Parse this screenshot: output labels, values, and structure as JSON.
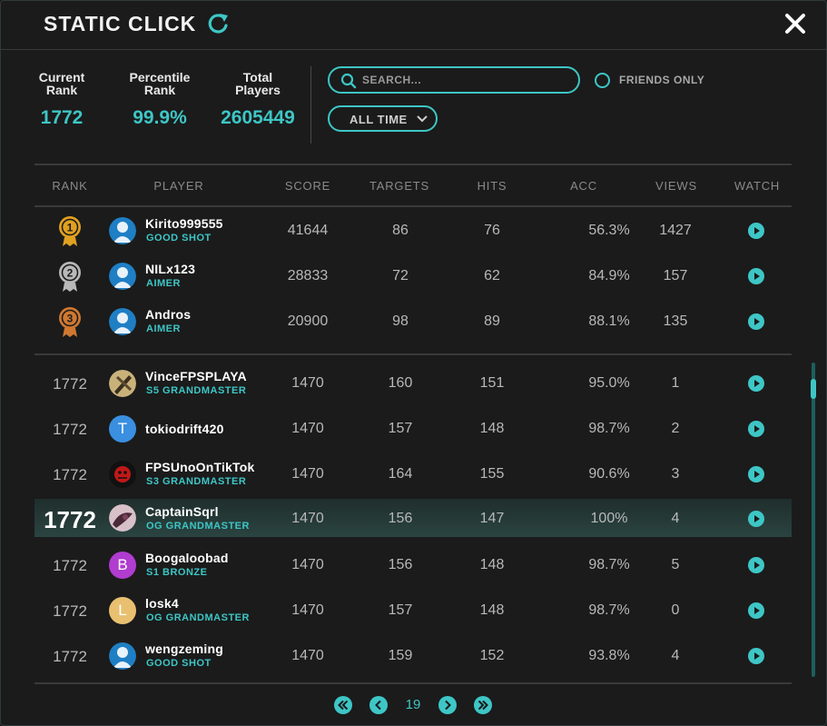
{
  "header": {
    "title": "STATIC CLICK"
  },
  "stats": [
    {
      "label_line1": "Current",
      "label_line2": "Rank",
      "value": "1772"
    },
    {
      "label_line1": "Percentile",
      "label_line2": "Rank",
      "value": "99.9%"
    },
    {
      "label_line1": "Total",
      "label_line2": "Players",
      "value": "2605449"
    }
  ],
  "search": {
    "placeholder": "SEARCH..."
  },
  "filters": {
    "friends_only_label": "FRIENDS ONLY",
    "timeframe_label": "ALL TIME"
  },
  "columns": [
    "RANK",
    "PLAYER",
    "SCORE",
    "TARGETS",
    "HITS",
    "ACC",
    "VIEWS",
    "WATCH"
  ],
  "top_rows": [
    {
      "medal": "1",
      "medal_color": "#e0a020",
      "name": "Kirito999555",
      "title": "GOOD SHOT",
      "score": "41644",
      "targets": "86",
      "hits": "76",
      "acc": "56.3%",
      "views": "1427"
    },
    {
      "medal": "2",
      "medal_color": "#b8b8b8",
      "name": "NILx123",
      "title": "AIMER",
      "score": "28833",
      "targets": "72",
      "hits": "62",
      "acc": "84.9%",
      "views": "157"
    },
    {
      "medal": "3",
      "medal_color": "#d07830",
      "name": "Andros",
      "title": "AIMER",
      "score": "20900",
      "targets": "98",
      "hits": "89",
      "acc": "88.1%",
      "views": "135"
    }
  ],
  "rows": [
    {
      "rank": "1772",
      "name": "VinceFPSPLAYA",
      "title": "S5 GRANDMASTER",
      "score": "1470",
      "targets": "160",
      "hits": "151",
      "acc": "95.0%",
      "views": "1"
    },
    {
      "rank": "1772",
      "name": "tokiodrift420",
      "title": "",
      "avatar_letter": "T",
      "score": "1470",
      "targets": "157",
      "hits": "148",
      "acc": "98.7%",
      "views": "2"
    },
    {
      "rank": "1772",
      "name": "FPSUnoOnTikTok",
      "title": "S3 GRANDMASTER",
      "score": "1470",
      "targets": "164",
      "hits": "155",
      "acc": "90.6%",
      "views": "3"
    },
    {
      "rank": "1772",
      "name": "CaptainSqrl",
      "title": "OG GRANDMASTER",
      "score": "1470",
      "targets": "156",
      "hits": "147",
      "acc": "100%",
      "views": "4"
    },
    {
      "rank": "1772",
      "name": "Boogaloobad",
      "title": "S1 BRONZE",
      "avatar_letter": "B",
      "score": "1470",
      "targets": "156",
      "hits": "148",
      "acc": "98.7%",
      "views": "5"
    },
    {
      "rank": "1772",
      "name": "losk4",
      "title": "OG GRANDMASTER",
      "avatar_letter": "L",
      "score": "1470",
      "targets": "157",
      "hits": "148",
      "acc": "98.7%",
      "views": "0"
    },
    {
      "rank": "1772",
      "name": "wengzeming",
      "title": "GOOD SHOT",
      "score": "1470",
      "targets": "159",
      "hits": "152",
      "acc": "93.8%",
      "views": "4"
    }
  ],
  "pagination": {
    "current_page": "19"
  },
  "colors": {
    "accent": "#3ec6c6",
    "background": "#1b1b1b"
  }
}
